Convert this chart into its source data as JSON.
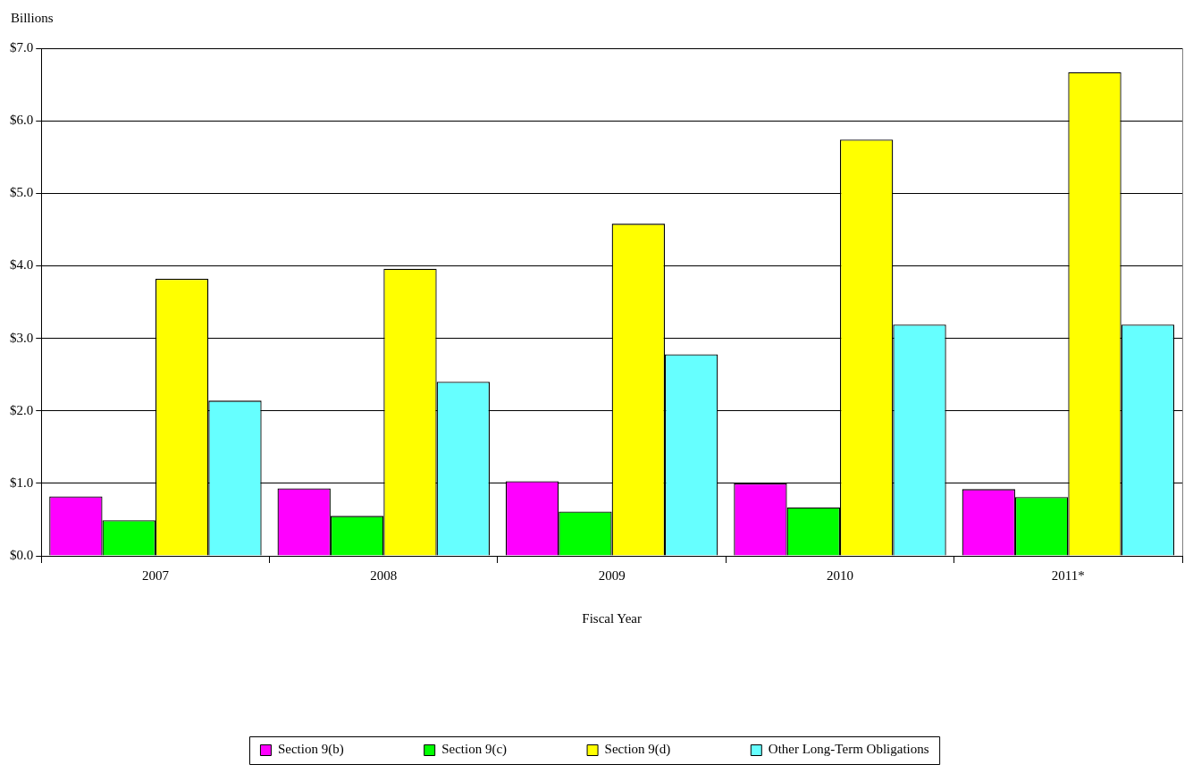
{
  "chart_data": {
    "type": "bar",
    "ylabel": "Billions",
    "xlabel": "Fiscal Year",
    "categories": [
      "2007",
      "2008",
      "2009",
      "2010",
      "2011*"
    ],
    "series": [
      {
        "name": "Section 9(b)",
        "color": "#ff00ff",
        "values": [
          0.82,
          0.93,
          1.03,
          1.0,
          0.92
        ]
      },
      {
        "name": "Section 9(c)",
        "color": "#00ff00",
        "values": [
          0.49,
          0.55,
          0.61,
          0.67,
          0.81
        ]
      },
      {
        "name": "Section 9(d)",
        "color": "#ffff00",
        "values": [
          3.82,
          3.96,
          4.58,
          5.74,
          6.67
        ]
      },
      {
        "name": "Other Long-Term Obligations",
        "color": "#66ffff",
        "values": [
          2.14,
          2.4,
          2.78,
          3.19,
          3.19
        ]
      }
    ],
    "ylim": [
      0,
      7
    ],
    "yticks": [
      {
        "value": 0,
        "label": "$0.0"
      },
      {
        "value": 1,
        "label": "$1.0"
      },
      {
        "value": 2,
        "label": "$2.0"
      },
      {
        "value": 3,
        "label": "$3.0"
      },
      {
        "value": 4,
        "label": "$4.0"
      },
      {
        "value": 5,
        "label": "$5.0"
      },
      {
        "value": 6,
        "label": "$6.0"
      },
      {
        "value": 7,
        "label": "$7.0"
      }
    ],
    "grid": "y",
    "legend": "bottom"
  }
}
